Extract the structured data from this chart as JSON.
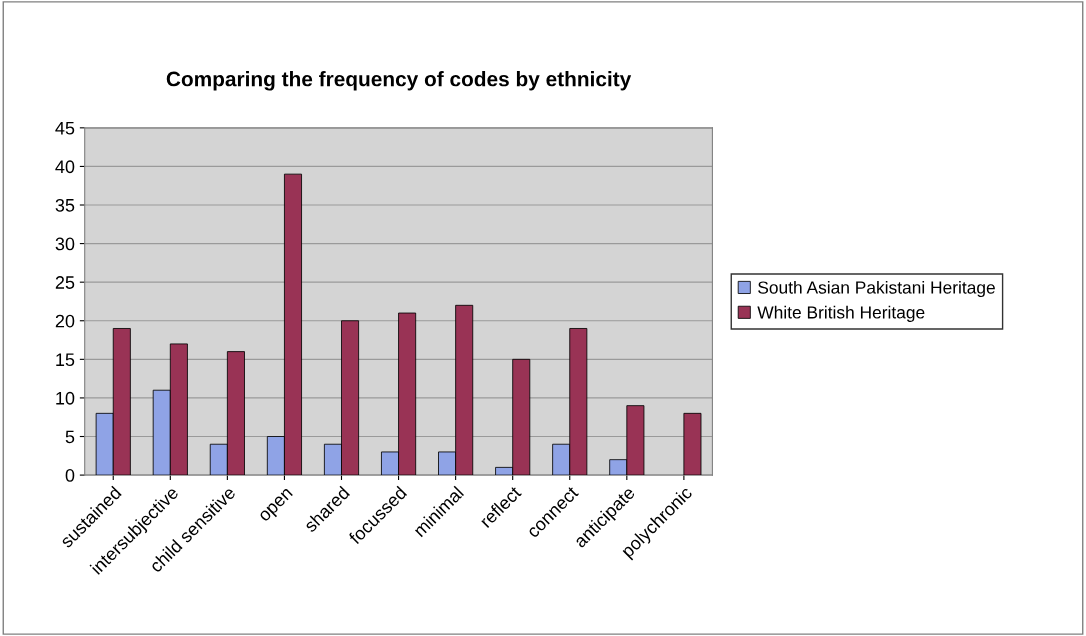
{
  "chart_data": {
    "type": "bar",
    "title": "Comparing the frequency of codes by ethnicity",
    "categories": [
      "sustained",
      "intersubjective",
      "child sensitive",
      "open",
      "shared",
      "focussed",
      "minimal",
      "reflect",
      "connect",
      "anticipate",
      "polychronic"
    ],
    "series": [
      {
        "name": "South Asian Pakistani Heritage",
        "color": "#8fa3e6",
        "values": [
          8,
          11,
          4,
          5,
          4,
          3,
          3,
          1,
          4,
          2,
          null
        ]
      },
      {
        "name": "White British Heritage",
        "color": "#993355",
        "values": [
          19,
          17,
          16,
          39,
          20,
          21,
          22,
          15,
          19,
          9,
          8
        ]
      }
    ],
    "ylim": [
      0,
      45
    ],
    "yticks": [
      0,
      5,
      10,
      15,
      20,
      25,
      30,
      35,
      40,
      45
    ],
    "grid": "y",
    "legend": "right"
  }
}
